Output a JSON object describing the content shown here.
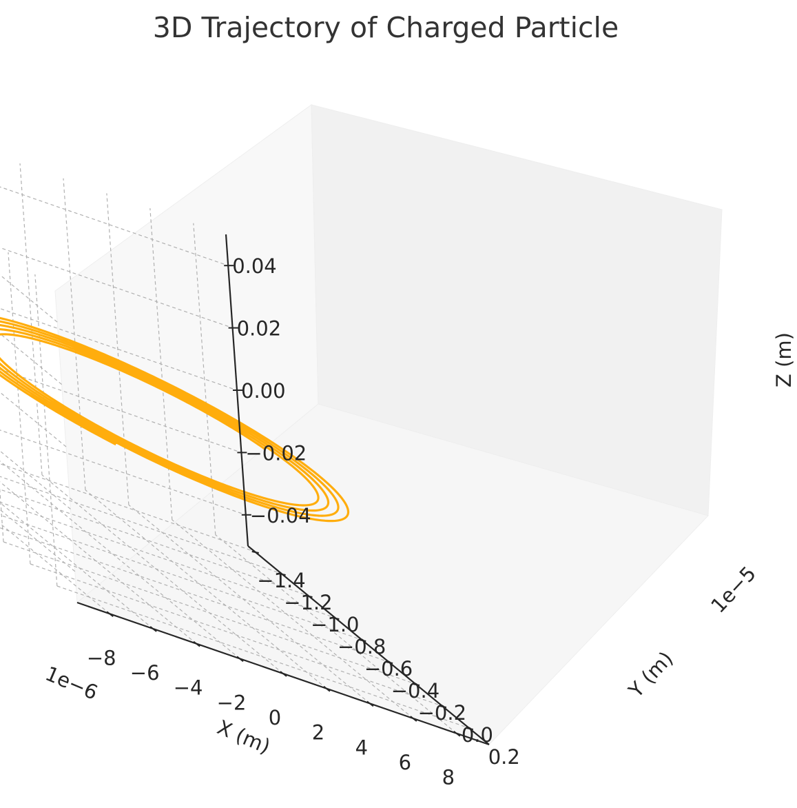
{
  "chart_data": {
    "type": "line",
    "projection": "3d",
    "title": "3D Trajectory of Charged Particle",
    "xlabel": "X (m)",
    "ylabel": "Y (m)",
    "zlabel": "Z (m)",
    "x_offset_text": "1e−6",
    "y_offset_text": "1e−5",
    "xlim": [
      -9.5,
      9.5
    ],
    "ylim": [
      -1.45,
      0.35
    ],
    "zlim": [
      -0.05,
      0.05
    ],
    "x_ticks": [
      -8,
      -6,
      -4,
      -2,
      0,
      2,
      4,
      6,
      8
    ],
    "x_tick_labels": [
      "−8",
      "−6",
      "−4",
      "−2",
      "0",
      "2",
      "4",
      "6",
      "8"
    ],
    "y_ticks": [
      0.2,
      0.0,
      -0.2,
      -0.4,
      -0.6,
      -0.8,
      -1.0,
      -1.2,
      -1.4
    ],
    "y_tick_labels": [
      "0.2",
      "0.0",
      "−0.2",
      "−0.4",
      "−0.6",
      "−0.8",
      "−1.0",
      "−1.2",
      "−1.4"
    ],
    "z_ticks": [
      0.04,
      0.02,
      0.0,
      -0.02,
      -0.04
    ],
    "z_tick_labels": [
      "0.04",
      "0.02",
      "0.00",
      "−0.02",
      "−0.04"
    ],
    "grid": true,
    "series": [
      {
        "color": "#ffad0d",
        "form": "circular spiral in plane z = 0, center (0, -0.55e-5 m), radius decreasing outward-to-inward",
        "radius_start_x_units": 8.0,
        "radius_end_x_units": 6.2,
        "turns": 4.6,
        "z": 0
      }
    ]
  }
}
